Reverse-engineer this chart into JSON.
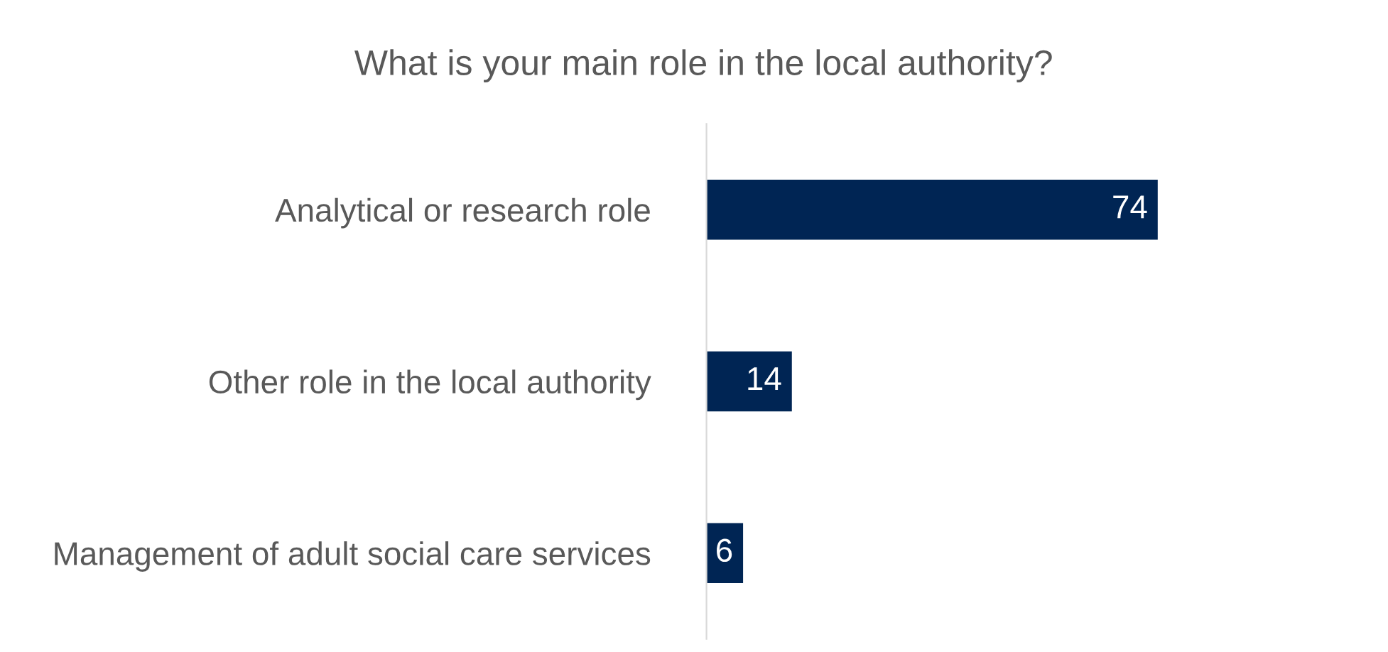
{
  "chart_data": {
    "type": "bar",
    "orientation": "horizontal",
    "title": "What is your main role in the local authority?",
    "categories": [
      "Analytical or research role",
      "Other role in the local authority",
      "Management of adult social care services"
    ],
    "values": [
      74,
      14,
      6
    ],
    "color": "#002554",
    "data_labels": true,
    "grid": false,
    "legend": false
  }
}
